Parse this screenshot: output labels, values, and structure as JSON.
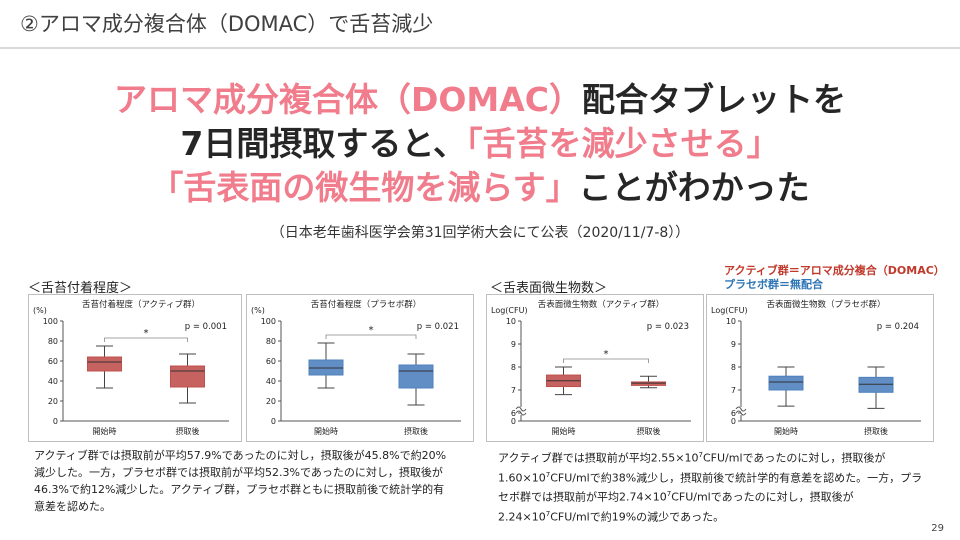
{
  "slide": {
    "title": "②アロマ成分複合体（DOMAC）で舌苔減少",
    "headline": {
      "line1_pink": "アロマ成分複合体（DOMAC）",
      "line1_dark": "配合タブレットを",
      "line2_dark": "7日間摂取すると、",
      "line2_pink": "「舌苔を減少させる」",
      "line3_pink": "「舌表面の微生物を減らす」",
      "line3_dark": "ことがわかった"
    },
    "source": "（日本老年歯科医学会第31回学術大会にて公表（2020/11/7-8））",
    "page_number": "29"
  },
  "left_section": {
    "label": "＜舌苔付着程度＞",
    "caption": "アクティブ群では摂取前が平均57.9%であったのに対し，摂取後が45.8%で約20%減少した。一方，プラセボ群では摂取前が平均52.3%であったのに対し，摂取後が46.3%で約12%減少した。アクティブ群，プラセボ群ともに摂取前後で統計学的有意差を認めた。"
  },
  "right_section": {
    "label": "＜舌表面微生物数＞",
    "legend_active": "アクティブ群＝アロマ成分複合（DOMAC）",
    "legend_placebo": "プラセボ群＝無配合",
    "caption_parts": [
      "アクティブ群では摂取前が平均2.55×10",
      "7",
      "CFU/mlであったのに対し，摂取後が1.60×10",
      "7",
      "CFU/mlで約38%減少し，摂取前後で統計学的有意差を認めた。一方，プラセボ群では摂取前が平均2.74×10",
      "7",
      "CFU/mlであったのに対し，摂取後が2.24×10",
      "7",
      "CFU/mlで約19%の減少であった。"
    ]
  },
  "colors": {
    "active": "#c0504d",
    "placebo": "#4f81bd",
    "pink": "#f07c8c"
  },
  "chart_data": [
    {
      "type": "boxplot",
      "title": "舌苔付着程度（アクティブ群）",
      "ylabel": "(%)",
      "ylim": [
        0,
        100
      ],
      "yticks": [
        "0",
        "20",
        "40",
        "60",
        "80",
        "100"
      ],
      "categories": [
        "開始時",
        "摂取後"
      ],
      "boxes": [
        {
          "min": 33,
          "q1": 50,
          "median": 59,
          "q3": 64,
          "max": 75
        },
        {
          "min": 18,
          "q1": 34,
          "median": 50,
          "q3": 55,
          "max": 67
        }
      ],
      "p_value": "p = 0.001",
      "significance": "*",
      "color": "#c0504d"
    },
    {
      "type": "boxplot",
      "title": "舌苔付着程度（プラセボ群）",
      "ylabel": "(%)",
      "ylim": [
        0,
        100
      ],
      "yticks": [
        "0",
        "20",
        "40",
        "60",
        "80",
        "100"
      ],
      "categories": [
        "開始時",
        "摂取後"
      ],
      "boxes": [
        {
          "min": 33,
          "q1": 46,
          "median": 53,
          "q3": 61,
          "max": 78
        },
        {
          "min": 16,
          "q1": 33,
          "median": 50,
          "q3": 56,
          "max": 67
        }
      ],
      "p_value": "p = 0.021",
      "significance": "*",
      "color": "#4f81bd"
    },
    {
      "type": "boxplot",
      "title": "舌表面微生物数（アクティブ群）",
      "ylabel": "Log(CFU)",
      "ylim": [
        0,
        10
      ],
      "axis_break": true,
      "yticks": [
        "0",
        "6",
        "7",
        "8",
        "9",
        "10"
      ],
      "categories": [
        "開始時",
        "摂取後"
      ],
      "boxes": [
        {
          "min": 6.8,
          "q1": 7.15,
          "median": 7.4,
          "q3": 7.65,
          "max": 8.0
        },
        {
          "min": 7.1,
          "q1": 7.2,
          "median": 7.3,
          "q3": 7.35,
          "max": 7.6
        }
      ],
      "p_value": "p = 0.023",
      "significance": "*",
      "color": "#c0504d"
    },
    {
      "type": "boxplot",
      "title": "舌表面微生物数（プラセボ群）",
      "ylabel": "Log(CFU)",
      "ylim": [
        0,
        10
      ],
      "axis_break": true,
      "yticks": [
        "0",
        "6",
        "7",
        "8",
        "9",
        "10"
      ],
      "categories": [
        "開始時",
        "摂取後"
      ],
      "boxes": [
        {
          "min": 6.3,
          "q1": 7.0,
          "median": 7.35,
          "q3": 7.6,
          "max": 8.0
        },
        {
          "min": 6.2,
          "q1": 6.9,
          "median": 7.25,
          "q3": 7.55,
          "max": 8.0
        }
      ],
      "p_value": "p = 0.204",
      "significance": "",
      "color": "#4f81bd"
    }
  ]
}
